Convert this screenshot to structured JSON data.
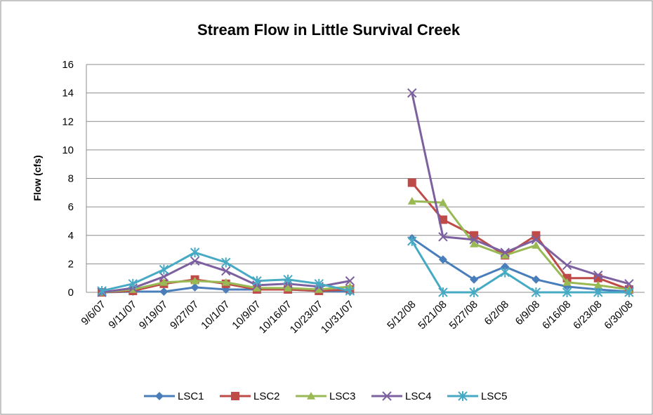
{
  "chart_data": {
    "type": "line",
    "title": "Stream Flow in Little Survival Creek",
    "y_label": "Flow (cfs)",
    "categories": [
      "9/6/07",
      "9/11/07",
      "9/19/07",
      "9/27/07",
      "10/1/07",
      "10/9/07",
      "10/16/07",
      "10/23/07",
      "10/31/07",
      null,
      "5/12/08",
      "5/21/08",
      "5/27/08",
      "6/2/08",
      "6/9/08",
      "6/16/08",
      "6/23/08",
      "6/30/08"
    ],
    "series": [
      {
        "name": "LSC1",
        "color": "#4a7ebb",
        "marker": "diamond",
        "values": [
          0,
          0.05,
          0.05,
          0.35,
          0.2,
          0.2,
          0.2,
          0.1,
          0.05,
          null,
          3.8,
          2.3,
          0.9,
          1.8,
          0.9,
          0.4,
          0.2,
          0.05
        ]
      },
      {
        "name": "LSC2",
        "color": "#be4b48",
        "marker": "square",
        "values": [
          0,
          0.1,
          0.6,
          0.9,
          0.6,
          0.2,
          0.2,
          0.1,
          0.2,
          null,
          7.7,
          5.1,
          4.0,
          2.6,
          4.0,
          1.0,
          1.0,
          0.2
        ]
      },
      {
        "name": "LSC3",
        "color": "#98b954",
        "marker": "triangle",
        "values": [
          0,
          0.2,
          0.7,
          0.8,
          0.7,
          0.3,
          0.3,
          0.2,
          0.4,
          null,
          6.4,
          6.3,
          3.4,
          2.6,
          3.3,
          0.7,
          0.5,
          0.2
        ]
      },
      {
        "name": "LSC4",
        "color": "#7d60a0",
        "marker": "x",
        "values": [
          0,
          0.3,
          1.1,
          2.2,
          1.5,
          0.5,
          0.6,
          0.4,
          0.8,
          null,
          14.0,
          3.9,
          3.7,
          2.8,
          3.7,
          1.9,
          1.2,
          0.6
        ]
      },
      {
        "name": "LSC5",
        "color": "#46aac5",
        "marker": "star",
        "values": [
          0.1,
          0.6,
          1.6,
          2.8,
          2.1,
          0.8,
          0.9,
          0.6,
          0.1,
          null,
          3.6,
          0,
          0,
          1.4,
          0,
          0,
          0,
          0
        ]
      }
    ],
    "ylim": [
      0,
      16
    ],
    "yticks": [
      0,
      2,
      4,
      6,
      8,
      10,
      12,
      14,
      16
    ],
    "grid": true,
    "legend": "bottom"
  }
}
